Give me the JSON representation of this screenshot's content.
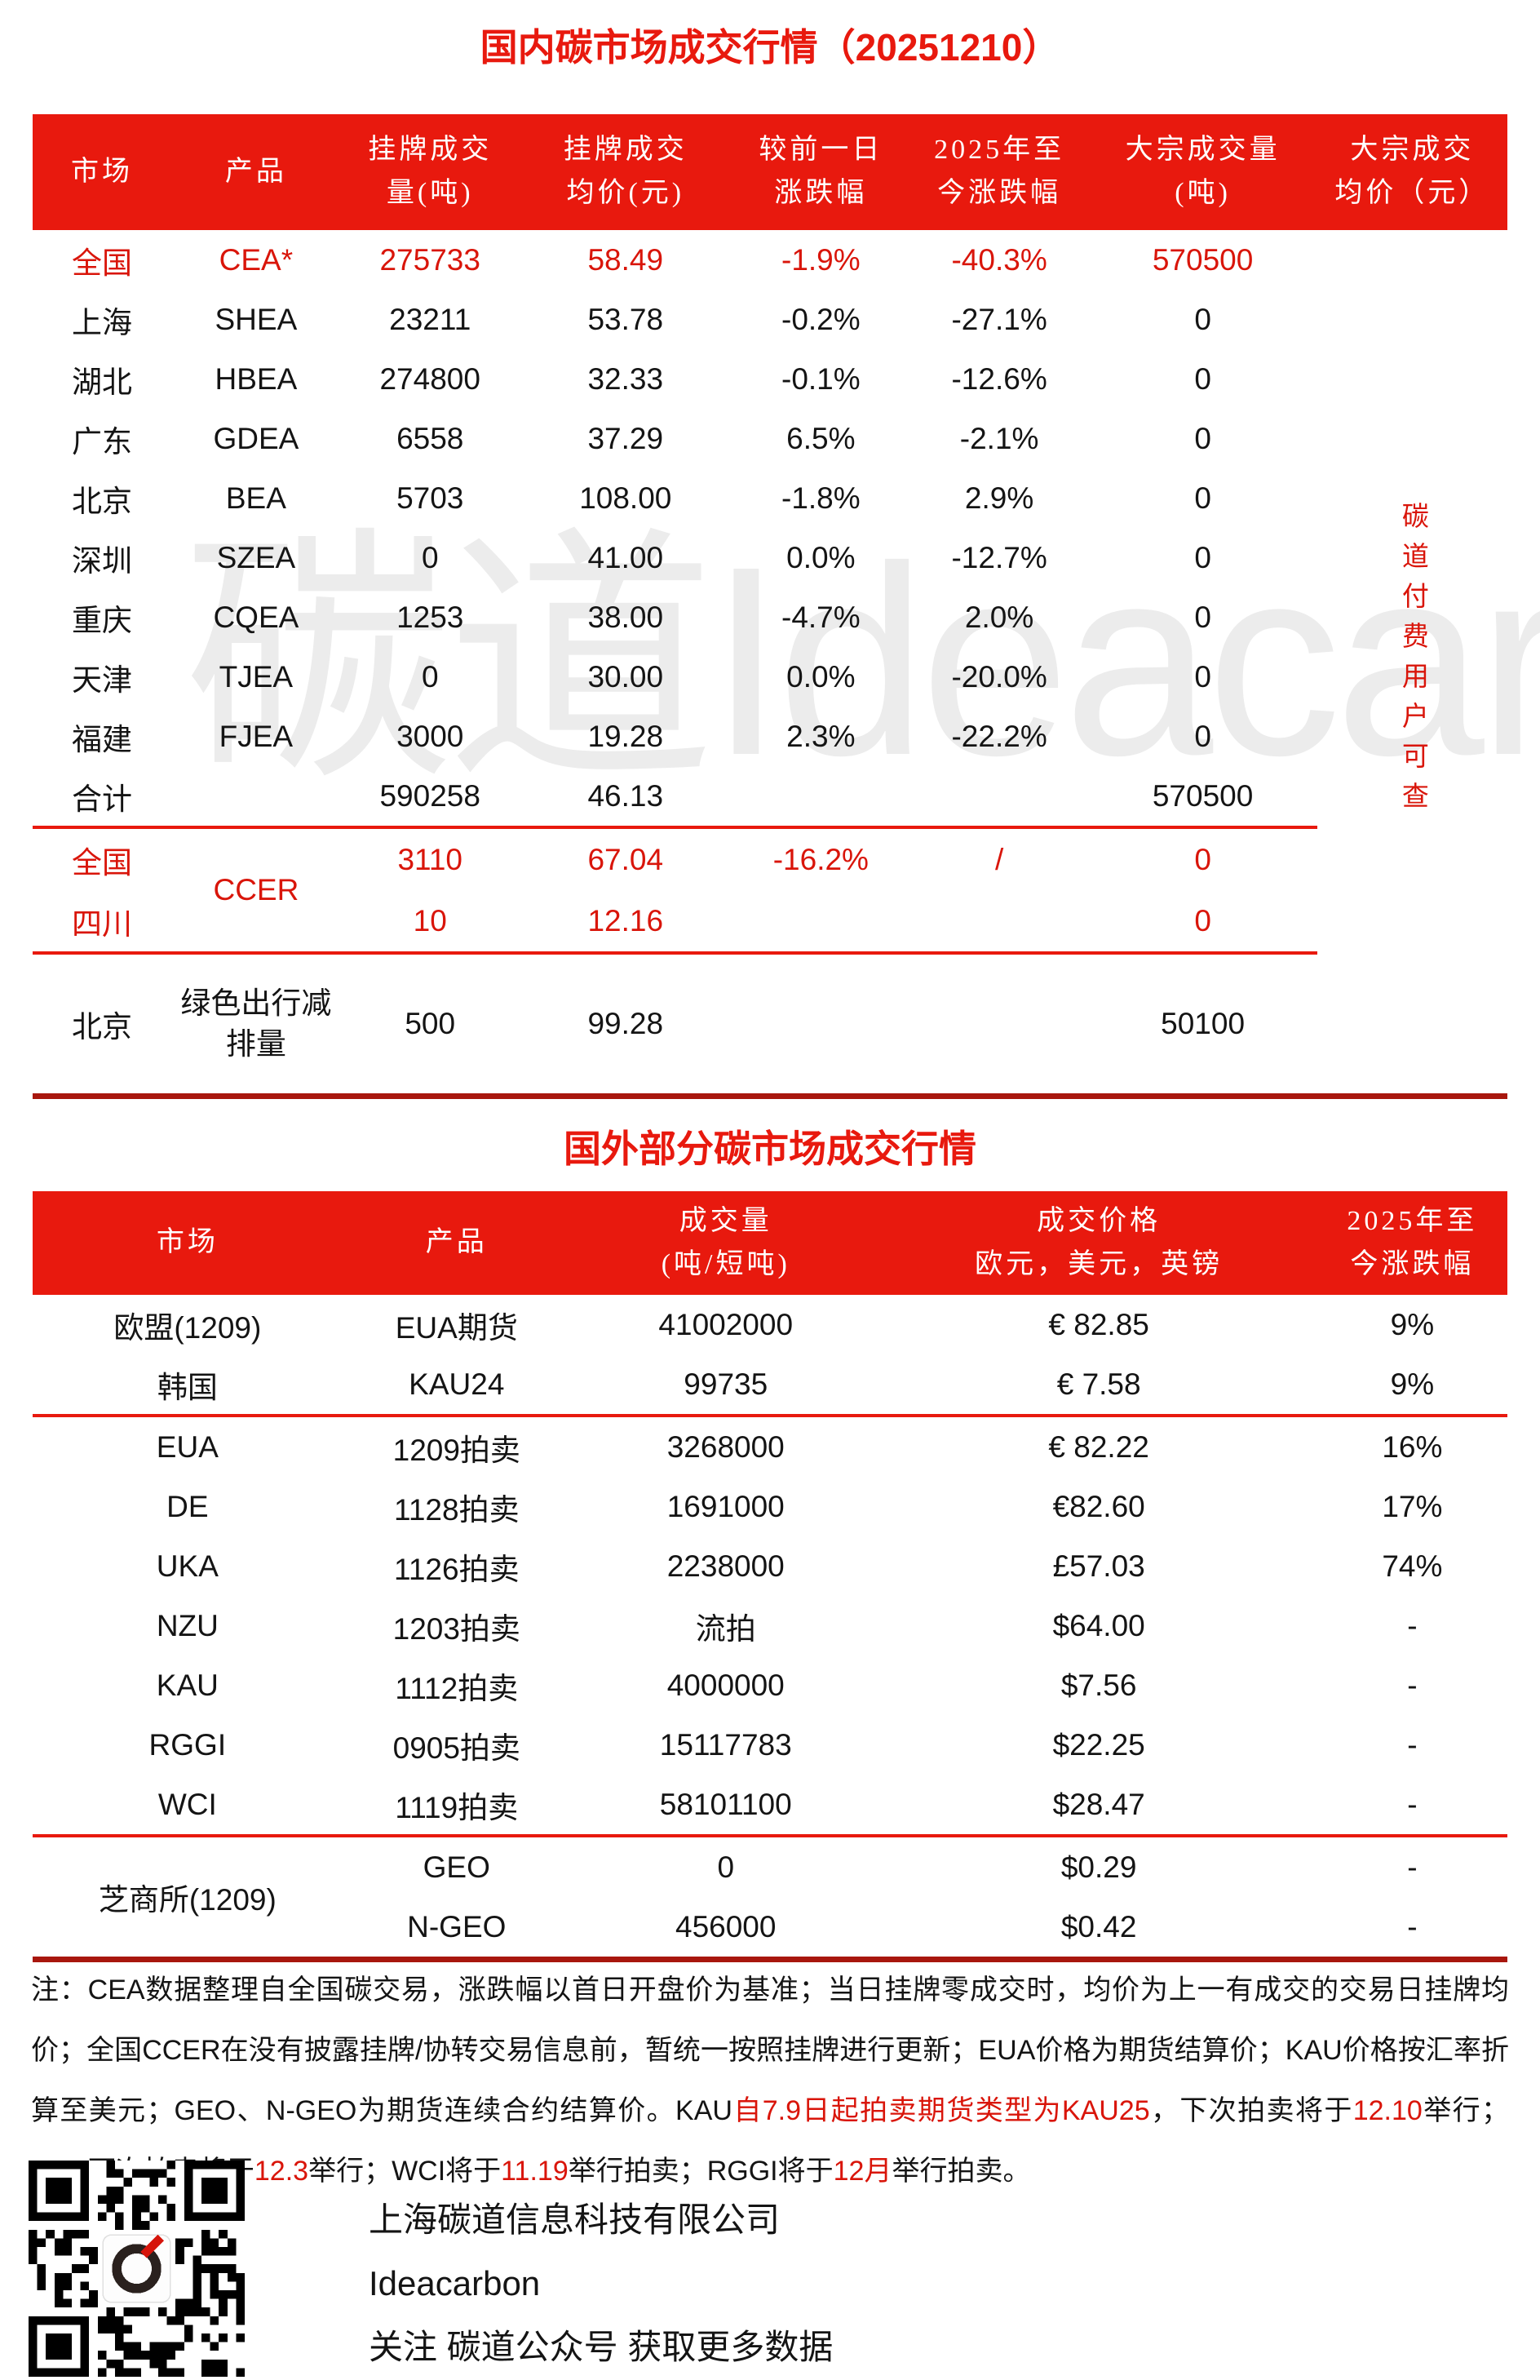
{
  "titles": {
    "domestic": "国内碳市场成交行情（20251210）",
    "foreign": "国外部分碳市场成交行情"
  },
  "watermark_text": "碳道Ideacarbon",
  "colors": {
    "header_red": "#e8190e",
    "red_text": "#d9150a",
    "divider_red": "#e8190e",
    "bottom_line_dark_red": "#a8170e",
    "watermark_gray": "#ececec"
  },
  "domestic_table": {
    "headers": {
      "market": "市场",
      "product": "产品",
      "listed_volume": "挂牌成交\n量(吨)",
      "listed_avg_price": "挂牌成交\n均价(元)",
      "day_change": "较前一日\n涨跌幅",
      "ytd_change": "2025年至\n今涨跌幅",
      "block_volume": "大宗成交量\n(吨)",
      "block_avg_price": "大宗成交\n均价（元）"
    },
    "paid_access_note": "碳道付费用户可查",
    "rows": [
      {
        "market": "全国",
        "product": "CEA*",
        "listed_volume": "275733",
        "listed_avg_price": "58.49",
        "day_change": "-1.9%",
        "ytd_change": "-40.3%",
        "block_volume": "570500"
      },
      {
        "market": "上海",
        "product": "SHEA",
        "listed_volume": "23211",
        "listed_avg_price": "53.78",
        "day_change": "-0.2%",
        "ytd_change": "-27.1%",
        "block_volume": "0"
      },
      {
        "market": "湖北",
        "product": "HBEA",
        "listed_volume": "274800",
        "listed_avg_price": "32.33",
        "day_change": "-0.1%",
        "ytd_change": "-12.6%",
        "block_volume": "0"
      },
      {
        "market": "广东",
        "product": "GDEA",
        "listed_volume": "6558",
        "listed_avg_price": "37.29",
        "day_change": "6.5%",
        "ytd_change": "-2.1%",
        "block_volume": "0"
      },
      {
        "market": "北京",
        "product": "BEA",
        "listed_volume": "5703",
        "listed_avg_price": "108.00",
        "day_change": "-1.8%",
        "ytd_change": "2.9%",
        "block_volume": "0"
      },
      {
        "market": "深圳",
        "product": "SZEA",
        "listed_volume": "0",
        "listed_avg_price": "41.00",
        "day_change": "0.0%",
        "ytd_change": "-12.7%",
        "block_volume": "0"
      },
      {
        "market": "重庆",
        "product": "CQEA",
        "listed_volume": "1253",
        "listed_avg_price": "38.00",
        "day_change": "-4.7%",
        "ytd_change": "2.0%",
        "block_volume": "0"
      },
      {
        "market": "天津",
        "product": "TJEA",
        "listed_volume": "0",
        "listed_avg_price": "30.00",
        "day_change": "0.0%",
        "ytd_change": "-20.0%",
        "block_volume": "0"
      },
      {
        "market": "福建",
        "product": "FJEA",
        "listed_volume": "3000",
        "listed_avg_price": "19.28",
        "day_change": "2.3%",
        "ytd_change": "-22.2%",
        "block_volume": "0"
      },
      {
        "market": "合计",
        "product": "",
        "listed_volume": "590258",
        "listed_avg_price": "46.13",
        "day_change": "",
        "ytd_change": "",
        "block_volume": "570500"
      },
      {
        "market": "全国",
        "product": "CCER",
        "listed_volume": "3110",
        "listed_avg_price": "67.04",
        "day_change": "-16.2%",
        "ytd_change": "/",
        "block_volume": "0"
      },
      {
        "market": "四川",
        "product": "",
        "listed_volume": "10",
        "listed_avg_price": "12.16",
        "day_change": "",
        "ytd_change": "",
        "block_volume": "0"
      },
      {
        "market": "北京",
        "product": "绿色出行减排量",
        "listed_volume": "500",
        "listed_avg_price": "99.28",
        "day_change": "",
        "ytd_change": "",
        "block_volume": "50100"
      }
    ]
  },
  "foreign_table": {
    "headers": {
      "market": "市场",
      "product": "产品",
      "volume": "成交量\n(吨/短吨)",
      "price": "成交价格\n欧元，美元，英镑",
      "ytd_change": "2025年至\n今涨跌幅"
    },
    "rows": [
      {
        "market": "欧盟(1209)",
        "product": "EUA期货",
        "volume": "41002000",
        "price": "€ 82.85",
        "ytd_change": "9%"
      },
      {
        "market": "韩国",
        "product": "KAU24",
        "volume": "99735",
        "price": "€ 7.58",
        "ytd_change": "9%"
      },
      {
        "market": "EUA",
        "product": "1209拍卖",
        "volume": "3268000",
        "price": "€ 82.22",
        "ytd_change": "16%"
      },
      {
        "market": "DE",
        "product": "1128拍卖",
        "volume": "1691000",
        "price": "€82.60",
        "ytd_change": "17%"
      },
      {
        "market": "UKA",
        "product": "1126拍卖",
        "volume": "2238000",
        "price": "£57.03",
        "ytd_change": "74%"
      },
      {
        "market": "NZU",
        "product": "1203拍卖",
        "volume": "流拍",
        "price": "$64.00",
        "ytd_change": "-"
      },
      {
        "market": "KAU",
        "product": "1112拍卖",
        "volume": "4000000",
        "price": "$7.56",
        "ytd_change": "-"
      },
      {
        "market": "RGGI",
        "product": "0905拍卖",
        "volume": "15117783",
        "price": "$22.25",
        "ytd_change": "-"
      },
      {
        "market": "WCI",
        "product": "1119拍卖",
        "volume": "58101100",
        "price": "$28.47",
        "ytd_change": "-"
      },
      {
        "market": "芝商所(1209)",
        "product": "GEO",
        "volume": "0",
        "price": "$0.29",
        "ytd_change": "-"
      },
      {
        "market": "",
        "product": "N-GEO",
        "volume": "456000",
        "price": "$0.42",
        "ytd_change": "-"
      }
    ]
  },
  "notes": {
    "segments": [
      {
        "text": "注：CEA数据整理自全国碳交易，涨跌幅以首日开盘价为基准；当日挂牌零成交时，均价为上一有成交的交易日挂牌均价；全国CCER在没有披露挂牌/协转交易信息前，暂统一按照挂牌进行更新；EUA价格为期货结算价；KAU价格按汇率折算至美元；GEO、N-GEO为期货连续合约结算价。KAU",
        "red": false
      },
      {
        "text": "自7.9日起拍卖期货类型为KAU25",
        "red": true
      },
      {
        "text": "，下次拍卖将于",
        "red": false
      },
      {
        "text": "12.10",
        "red": true
      },
      {
        "text": "举行；NZU下次拍卖将于",
        "red": false
      },
      {
        "text": "12.3",
        "red": true
      },
      {
        "text": "举行；WCI将于",
        "red": false
      },
      {
        "text": "11.19",
        "red": true
      },
      {
        "text": "举行拍卖；RGGI将于",
        "red": false
      },
      {
        "text": "12月",
        "red": true
      },
      {
        "text": "举行拍卖。",
        "red": false
      }
    ]
  },
  "footer": {
    "company": "上海碳道信息科技有限公司",
    "brand": "Ideacarbon",
    "cta": "关注 碳道公众号 获取更多数据"
  }
}
